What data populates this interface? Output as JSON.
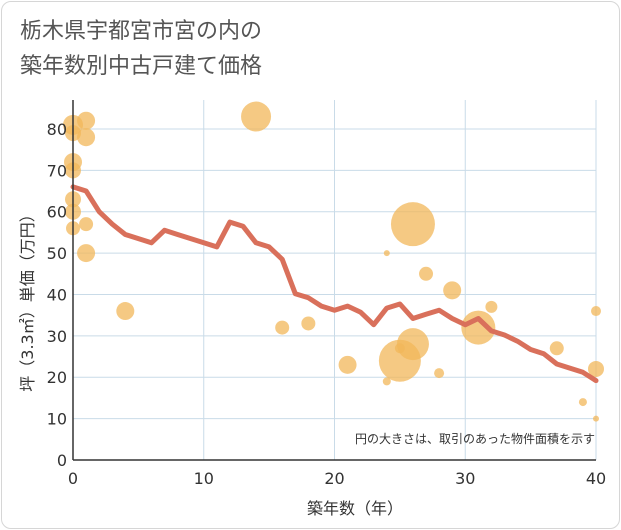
{
  "chart_title": {
    "line1": "栃木県宇都宮市宮の内の",
    "line2": "築年数別中古戸建て価格"
  },
  "colors": {
    "line": "#d9705b",
    "bubble": "#f2b75a",
    "grid": "#c9dbe8",
    "axis": "#333333"
  },
  "chart_data": {
    "type": "scatter",
    "title": "栃木県宇都宮市宮の内の築年数別中古戸建て価格",
    "xlabel": "築年数（年）",
    "ylabel": "坪（3.3㎡）単価（万円）",
    "xlim": [
      0,
      40
    ],
    "ylim": [
      0,
      87
    ],
    "x_ticks": [
      "0",
      "10",
      "20",
      "30",
      "40"
    ],
    "y_ticks": [
      "0",
      "10",
      "20",
      "30",
      "40",
      "50",
      "60",
      "70",
      "80"
    ],
    "grid": true,
    "note": "円の大きさは、取引のあった物件面積を示す",
    "series": [
      {
        "type": "line",
        "points": [
          [
            0,
            66
          ],
          [
            1,
            65
          ],
          [
            2,
            60
          ],
          [
            3,
            57
          ],
          [
            4,
            54.5
          ],
          [
            5,
            53.5
          ],
          [
            6,
            52.5
          ],
          [
            7,
            55.5
          ],
          [
            8,
            54.5
          ],
          [
            9,
            53.5
          ],
          [
            10,
            52.5
          ],
          [
            11,
            51.5
          ],
          [
            12,
            57.5
          ],
          [
            13,
            56.5
          ],
          [
            14,
            52.5
          ],
          [
            15,
            51.5
          ],
          [
            16,
            48.5
          ],
          [
            17,
            40.2
          ],
          [
            18,
            39.2
          ],
          [
            19,
            37.2
          ],
          [
            20,
            36.2
          ],
          [
            21,
            37.2
          ],
          [
            22,
            35.7
          ],
          [
            23,
            32.7
          ],
          [
            24,
            36.7
          ],
          [
            25,
            37.7
          ],
          [
            26,
            34.2
          ],
          [
            27,
            35.2
          ],
          [
            28,
            36.2
          ],
          [
            29,
            34.2
          ],
          [
            30,
            32.7
          ],
          [
            31,
            34.2
          ],
          [
            32,
            31.2
          ],
          [
            33,
            30.2
          ],
          [
            34,
            28.7
          ],
          [
            35,
            26.7
          ],
          [
            36,
            25.7
          ],
          [
            37,
            23.2
          ],
          [
            38,
            22.2
          ],
          [
            39,
            21.2
          ],
          [
            40,
            19.2
          ]
        ]
      },
      {
        "type": "bubble",
        "points": [
          {
            "x": 0,
            "y": 81,
            "size": 10
          },
          {
            "x": 0,
            "y": 79,
            "size": 8
          },
          {
            "x": 0,
            "y": 72,
            "size": 9
          },
          {
            "x": 0,
            "y": 70,
            "size": 8
          },
          {
            "x": 0,
            "y": 63,
            "size": 8
          },
          {
            "x": 0,
            "y": 60,
            "size": 8
          },
          {
            "x": 0,
            "y": 56,
            "size": 7
          },
          {
            "x": 1,
            "y": 82,
            "size": 9
          },
          {
            "x": 1,
            "y": 78,
            "size": 9
          },
          {
            "x": 1,
            "y": 57,
            "size": 7
          },
          {
            "x": 1,
            "y": 50,
            "size": 9
          },
          {
            "x": 4,
            "y": 36,
            "size": 9
          },
          {
            "x": 14,
            "y": 83,
            "size": 15
          },
          {
            "x": 16,
            "y": 32,
            "size": 7
          },
          {
            "x": 18,
            "y": 33,
            "size": 7
          },
          {
            "x": 21,
            "y": 23,
            "size": 9
          },
          {
            "x": 24,
            "y": 50,
            "size": 3
          },
          {
            "x": 24,
            "y": 19,
            "size": 4
          },
          {
            "x": 25,
            "y": 24,
            "size": 21
          },
          {
            "x": 25,
            "y": 27,
            "size": 5
          },
          {
            "x": 26,
            "y": 57,
            "size": 22
          },
          {
            "x": 26,
            "y": 28,
            "size": 16
          },
          {
            "x": 27,
            "y": 45,
            "size": 7
          },
          {
            "x": 28,
            "y": 21,
            "size": 5
          },
          {
            "x": 29,
            "y": 41,
            "size": 9
          },
          {
            "x": 31,
            "y": 32,
            "size": 17
          },
          {
            "x": 32,
            "y": 37,
            "size": 6
          },
          {
            "x": 37,
            "y": 27,
            "size": 7
          },
          {
            "x": 39,
            "y": 14,
            "size": 4
          },
          {
            "x": 40,
            "y": 36,
            "size": 5
          },
          {
            "x": 40,
            "y": 22,
            "size": 8
          },
          {
            "x": 40,
            "y": 10,
            "size": 3
          }
        ]
      }
    ]
  }
}
